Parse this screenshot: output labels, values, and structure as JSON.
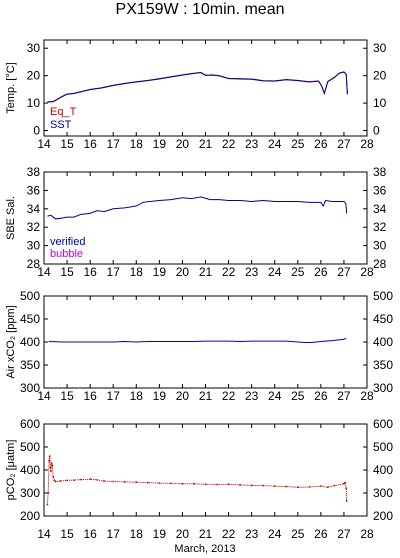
{
  "title": "PX159W : 10min. mean",
  "x_axis_label": "March, 2013",
  "colors": {
    "eq_t": "#cc0000",
    "sst": "#000099",
    "verified": "#000099",
    "bubble": "#cc00cc",
    "air": "#0000cc",
    "pco2": "#cc0000"
  },
  "chart_data": [
    {
      "type": "line",
      "ylabel": "Temp. [°C]",
      "xlim": [
        14,
        28
      ],
      "ylim": [
        -2,
        33
      ],
      "x_ticks": [
        "14",
        "15",
        "16",
        "17",
        "18",
        "19",
        "20",
        "21",
        "22",
        "23",
        "24",
        "25",
        "26",
        "27",
        "28"
      ],
      "y_ticks": [
        "0",
        "10",
        "20",
        "30"
      ],
      "y_tick_values": [
        0,
        10,
        20,
        30
      ],
      "series": [
        {
          "name": "Eq_T",
          "x": [
            14.15,
            14.4,
            14.6,
            14.8,
            15.0,
            15.3,
            15.6,
            16.0,
            16.5,
            17.0,
            17.5,
            18.0,
            18.5,
            19.0,
            19.5,
            20.0,
            20.4,
            20.8,
            21.0,
            21.3,
            21.6,
            22.0,
            22.5,
            23.0,
            23.5,
            24.0,
            24.5,
            25.0,
            25.5,
            25.9,
            26.05,
            26.15,
            26.3,
            26.6,
            26.8,
            27.0,
            27.1,
            27.15
          ],
          "y": [
            10.5,
            10.6,
            11.5,
            12.5,
            13.3,
            13.6,
            14.2,
            15.0,
            15.6,
            16.5,
            17.2,
            17.8,
            18.3,
            18.9,
            19.6,
            20.3,
            20.8,
            21.2,
            20.2,
            20.3,
            20.0,
            19.0,
            18.9,
            18.8,
            18.2,
            18.1,
            18.6,
            18.3,
            17.8,
            18.1,
            16.0,
            13.6,
            17.9,
            19.5,
            21.0,
            21.4,
            20.5,
            13.3
          ]
        },
        {
          "name": "SST",
          "x": [
            14.15,
            14.4,
            14.6,
            14.8,
            15.0,
            15.3,
            15.6,
            16.0,
            16.5,
            17.0,
            17.5,
            18.0,
            18.5,
            19.0,
            19.5,
            20.0,
            20.4,
            20.8,
            21.0,
            21.3,
            21.6,
            22.0,
            22.5,
            23.0,
            23.5,
            24.0,
            24.5,
            25.0,
            25.5,
            25.9,
            26.05,
            26.15,
            26.3,
            26.6,
            26.8,
            27.0,
            27.1,
            27.15
          ],
          "y": [
            10.4,
            10.5,
            11.4,
            12.4,
            13.2,
            13.5,
            14.1,
            14.9,
            15.5,
            16.4,
            17.1,
            17.7,
            18.2,
            18.8,
            19.5,
            20.2,
            20.7,
            21.1,
            20.1,
            20.2,
            19.9,
            18.9,
            18.8,
            18.7,
            18.1,
            18.0,
            18.5,
            18.2,
            17.7,
            18.0,
            15.9,
            13.5,
            17.8,
            19.4,
            20.9,
            21.3,
            20.4,
            13.2
          ]
        }
      ]
    },
    {
      "type": "line",
      "ylabel": "SBE Sal.",
      "xlim": [
        14,
        28
      ],
      "ylim": [
        28,
        38
      ],
      "x_ticks": [
        "14",
        "15",
        "16",
        "17",
        "18",
        "19",
        "20",
        "21",
        "22",
        "23",
        "24",
        "25",
        "26",
        "27",
        "28"
      ],
      "y_ticks": [
        "28",
        "30",
        "32",
        "34",
        "36",
        "38"
      ],
      "y_tick_values": [
        28,
        30,
        32,
        34,
        36,
        38
      ],
      "series": [
        {
          "name": "verified",
          "x": [
            14.15,
            14.3,
            14.5,
            14.8,
            15.0,
            15.3,
            15.6,
            16.0,
            16.3,
            16.6,
            17.0,
            17.5,
            18.0,
            18.3,
            18.6,
            19.0,
            19.5,
            20.0,
            20.4,
            20.8,
            21.2,
            21.6,
            22.0,
            22.5,
            23.0,
            23.5,
            24.0,
            24.5,
            25.0,
            25.5,
            26.0,
            26.1,
            26.2,
            26.5,
            27.0,
            27.08,
            27.12
          ],
          "y": [
            33.2,
            33.3,
            32.9,
            33.0,
            33.1,
            33.1,
            33.4,
            33.5,
            33.8,
            33.7,
            34.0,
            34.1,
            34.3,
            34.7,
            34.8,
            34.9,
            35.0,
            35.2,
            35.1,
            35.3,
            35.0,
            35.0,
            34.9,
            34.9,
            34.8,
            34.9,
            34.8,
            34.8,
            34.8,
            34.7,
            34.7,
            34.3,
            34.9,
            34.8,
            34.8,
            34.6,
            33.5
          ]
        }
      ],
      "legend": [
        "verified",
        "bubble"
      ]
    },
    {
      "type": "line",
      "ylabel": "Air xCO₂ [ppm]",
      "xlim": [
        14,
        28
      ],
      "ylim": [
        300,
        500
      ],
      "x_ticks": [
        "14",
        "15",
        "16",
        "17",
        "18",
        "19",
        "20",
        "21",
        "22",
        "23",
        "24",
        "25",
        "26",
        "27",
        "28"
      ],
      "y_ticks": [
        "300",
        "350",
        "400",
        "450",
        "500"
      ],
      "y_tick_values": [
        300,
        350,
        400,
        450,
        500
      ],
      "series": [
        {
          "name": "",
          "x": [
            14.2,
            14.8,
            15.5,
            16.0,
            16.5,
            17.0,
            17.5,
            18.0,
            18.5,
            19.0,
            19.5,
            20.0,
            20.5,
            21.0,
            21.5,
            22.0,
            22.5,
            23.0,
            23.5,
            24.0,
            24.5,
            25.0,
            25.3,
            25.6,
            26.0,
            26.5,
            27.0,
            27.1
          ],
          "y": [
            401,
            400,
            400,
            400,
            400,
            400,
            401,
            400,
            401,
            401,
            401,
            401,
            401,
            402,
            402,
            402,
            401,
            402,
            402,
            402,
            402,
            400,
            399,
            399,
            401,
            403,
            406,
            408
          ]
        }
      ]
    },
    {
      "type": "scatter",
      "ylabel": "pCO₂ [μatm]",
      "xlim": [
        14,
        28
      ],
      "ylim": [
        200,
        600
      ],
      "x_ticks": [
        "14",
        "15",
        "16",
        "17",
        "18",
        "19",
        "20",
        "21",
        "22",
        "23",
        "24",
        "25",
        "26",
        "27",
        "28"
      ],
      "y_ticks": [
        "200",
        "300",
        "400",
        "500",
        "600"
      ],
      "y_tick_values": [
        200,
        300,
        400,
        500,
        600
      ],
      "series": [
        {
          "name": "",
          "x": [
            14.15,
            14.18,
            14.22,
            14.25,
            14.28,
            14.3,
            14.33,
            14.36,
            14.4,
            14.45,
            14.5,
            14.7,
            15.0,
            15.3,
            15.6,
            16.0,
            16.3,
            16.6,
            17.0,
            17.5,
            18.0,
            18.5,
            19.0,
            19.5,
            20.0,
            20.5,
            21.0,
            21.5,
            22.0,
            22.5,
            23.0,
            23.5,
            24.0,
            24.5,
            25.0,
            25.5,
            26.0,
            26.3,
            26.6,
            27.0,
            27.05,
            27.1,
            27.12
          ],
          "y": [
            250,
            300,
            440,
            460,
            410,
            395,
            430,
            420,
            370,
            355,
            350,
            352,
            355,
            356,
            358,
            360,
            357,
            352,
            350,
            348,
            347,
            345,
            343,
            342,
            340,
            340,
            338,
            337,
            338,
            335,
            333,
            332,
            330,
            328,
            325,
            326,
            330,
            325,
            332,
            340,
            345,
            320,
            265
          ]
        }
      ]
    }
  ]
}
